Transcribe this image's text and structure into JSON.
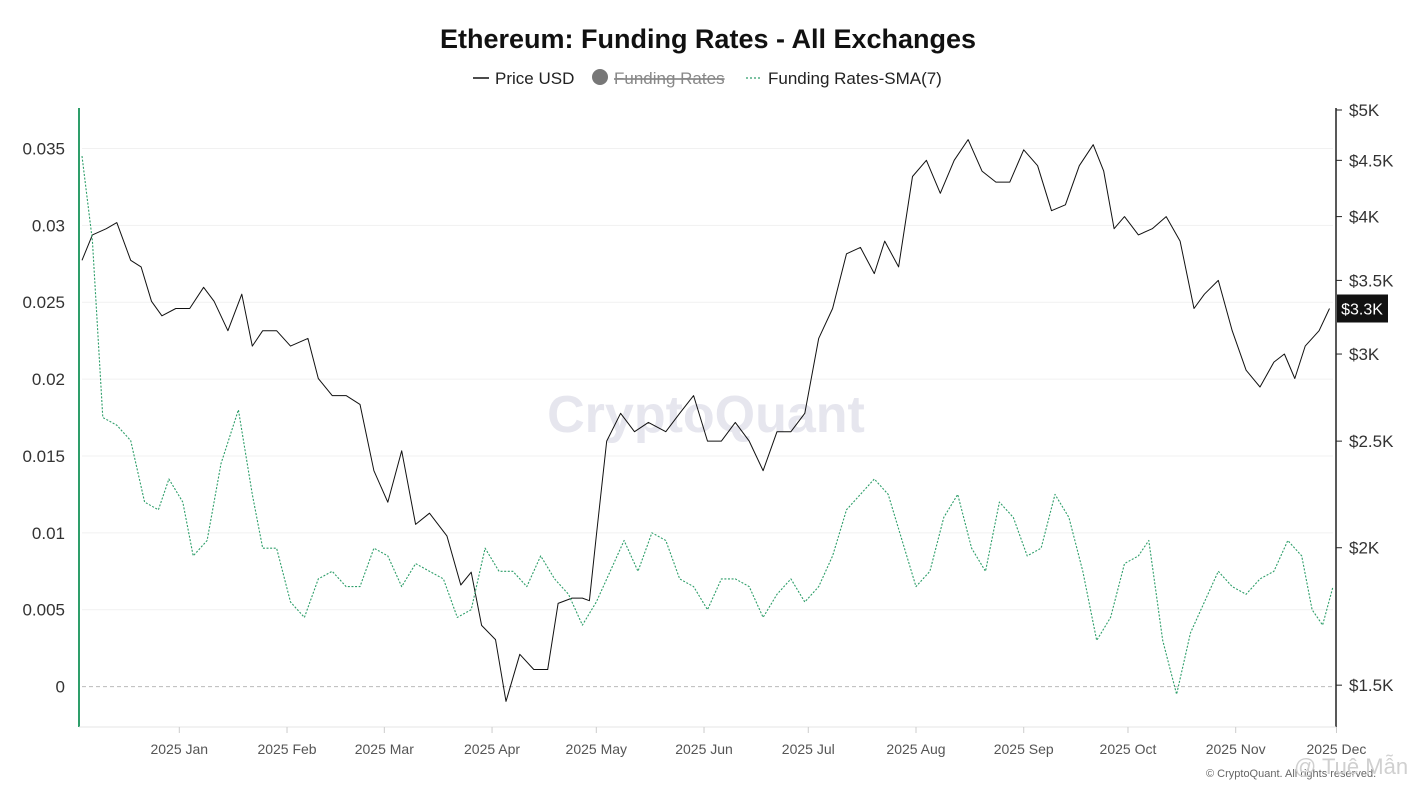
{
  "chart_data": {
    "type": "line",
    "title": "Ethereum: Funding Rates - All Exchanges",
    "legend": [
      {
        "name": "Price USD",
        "style": "solid",
        "color": "#111111",
        "hidden": false
      },
      {
        "name": "Funding Rates",
        "style": "dot",
        "color": "#777777",
        "hidden": true
      },
      {
        "name": "Funding Rates-SMA(7)",
        "style": "dashed",
        "color": "#2e9e6a",
        "hidden": false
      }
    ],
    "left_axis": {
      "ticks": [
        "0",
        "0.005",
        "0.01",
        "0.015",
        "0.02",
        "0.025",
        "0.03",
        "0.035"
      ],
      "ylim": [
        -0.0025,
        0.0375
      ]
    },
    "right_axis": {
      "scale": "log",
      "ticks": [
        "$1.5K",
        "$2K",
        "$2.5K",
        "$3K",
        "$3.5K",
        "$4K",
        "$4.5K",
        "$5K"
      ],
      "tick_values": [
        1500,
        2000,
        2500,
        3000,
        3500,
        4000,
        4500,
        5000
      ],
      "ylim": [
        1380,
        5000
      ]
    },
    "x_ticks": [
      "2025 Jan",
      "2025 Feb",
      "2025 Mar",
      "2025 Apr",
      "2025 May",
      "2025 Jun",
      "2025 Jul",
      "2025 Aug",
      "2025 Sep",
      "2025 Oct",
      "2025 Nov",
      "2025 Dec"
    ],
    "x_range": [
      "2024-12-18",
      "2025-12-13"
    ],
    "current_price_label": "$3.3K",
    "series": [
      {
        "name": "Price USD",
        "axis": "right",
        "points": [
          [
            "2024-12-18",
            3650
          ],
          [
            "2024-12-21",
            3850
          ],
          [
            "2024-12-25",
            3900
          ],
          [
            "2024-12-28",
            3950
          ],
          [
            "2025-01-01",
            3650
          ],
          [
            "2025-01-04",
            3600
          ],
          [
            "2025-01-07",
            3350
          ],
          [
            "2025-01-10",
            3250
          ],
          [
            "2025-01-14",
            3300
          ],
          [
            "2025-01-18",
            3300
          ],
          [
            "2025-01-22",
            3450
          ],
          [
            "2025-01-25",
            3350
          ],
          [
            "2025-01-29",
            3150
          ],
          [
            "2025-02-02",
            3400
          ],
          [
            "2025-02-05",
            3050
          ],
          [
            "2025-02-08",
            3150
          ],
          [
            "2025-02-12",
            3150
          ],
          [
            "2025-02-16",
            3050
          ],
          [
            "2025-02-21",
            3100
          ],
          [
            "2025-02-24",
            2850
          ],
          [
            "2025-02-28",
            2750
          ],
          [
            "2025-03-04",
            2750
          ],
          [
            "2025-03-08",
            2700
          ],
          [
            "2025-03-12",
            2350
          ],
          [
            "2025-03-16",
            2200
          ],
          [
            "2025-03-20",
            2450
          ],
          [
            "2025-03-24",
            2100
          ],
          [
            "2025-03-28",
            2150
          ],
          [
            "2025-04-02",
            2050
          ],
          [
            "2025-04-06",
            1850
          ],
          [
            "2025-04-09",
            1900
          ],
          [
            "2025-04-12",
            1700
          ],
          [
            "2025-04-16",
            1650
          ],
          [
            "2025-04-19",
            1450
          ],
          [
            "2025-04-23",
            1600
          ],
          [
            "2025-04-27",
            1550
          ],
          [
            "2025-05-01",
            1550
          ],
          [
            "2025-05-04",
            1780
          ],
          [
            "2025-05-08",
            1800
          ],
          [
            "2025-05-11",
            1800
          ],
          [
            "2025-05-13",
            1790
          ],
          [
            "2025-05-15",
            2050
          ],
          [
            "2025-05-18",
            2500
          ],
          [
            "2025-05-22",
            2650
          ],
          [
            "2025-05-26",
            2550
          ],
          [
            "2025-05-30",
            2600
          ],
          [
            "2025-06-04",
            2550
          ],
          [
            "2025-06-08",
            2650
          ],
          [
            "2025-06-12",
            2750
          ],
          [
            "2025-06-16",
            2500
          ],
          [
            "2025-06-20",
            2500
          ],
          [
            "2025-06-24",
            2600
          ],
          [
            "2025-06-28",
            2500
          ],
          [
            "2025-07-02",
            2350
          ],
          [
            "2025-07-06",
            2550
          ],
          [
            "2025-07-10",
            2550
          ],
          [
            "2025-07-14",
            2650
          ],
          [
            "2025-07-18",
            3100
          ],
          [
            "2025-07-22",
            3300
          ],
          [
            "2025-07-26",
            3700
          ],
          [
            "2025-07-30",
            3750
          ],
          [
            "2025-08-03",
            3550
          ],
          [
            "2025-08-06",
            3800
          ],
          [
            "2025-08-10",
            3600
          ],
          [
            "2025-08-14",
            4350
          ],
          [
            "2025-08-18",
            4500
          ],
          [
            "2025-08-22",
            4200
          ],
          [
            "2025-08-26",
            4500
          ],
          [
            "2025-08-30",
            4700
          ],
          [
            "2025-09-03",
            4400
          ],
          [
            "2025-09-07",
            4300
          ],
          [
            "2025-09-11",
            4300
          ],
          [
            "2025-09-15",
            4600
          ],
          [
            "2025-09-19",
            4450
          ],
          [
            "2025-09-23",
            4050
          ],
          [
            "2025-09-27",
            4100
          ],
          [
            "2025-10-01",
            4450
          ],
          [
            "2025-10-05",
            4650
          ],
          [
            "2025-10-08",
            4400
          ],
          [
            "2025-10-11",
            3900
          ],
          [
            "2025-10-14",
            4000
          ],
          [
            "2025-10-18",
            3850
          ],
          [
            "2025-10-22",
            3900
          ],
          [
            "2025-10-26",
            4000
          ],
          [
            "2025-10-30",
            3800
          ],
          [
            "2025-11-03",
            3300
          ],
          [
            "2025-11-06",
            3400
          ],
          [
            "2025-11-10",
            3500
          ],
          [
            "2025-11-14",
            3150
          ],
          [
            "2025-11-18",
            2900
          ],
          [
            "2025-11-22",
            2800
          ],
          [
            "2025-11-26",
            2950
          ],
          [
            "2025-11-29",
            3000
          ],
          [
            "2025-12-02",
            2850
          ],
          [
            "2025-12-05",
            3050
          ],
          [
            "2025-12-09",
            3150
          ],
          [
            "2025-12-12",
            3300
          ]
        ]
      },
      {
        "name": "Funding Rates-SMA(7)",
        "axis": "left",
        "points": [
          [
            "2024-12-18",
            0.0345
          ],
          [
            "2024-12-21",
            0.029
          ],
          [
            "2024-12-24",
            0.0175
          ],
          [
            "2024-12-28",
            0.017
          ],
          [
            "2025-01-01",
            0.016
          ],
          [
            "2025-01-05",
            0.012
          ],
          [
            "2025-01-09",
            0.0115
          ],
          [
            "2025-01-12",
            0.0135
          ],
          [
            "2025-01-16",
            0.012
          ],
          [
            "2025-01-19",
            0.0085
          ],
          [
            "2025-01-23",
            0.0095
          ],
          [
            "2025-01-27",
            0.0145
          ],
          [
            "2025-02-01",
            0.018
          ],
          [
            "2025-02-05",
            0.0125
          ],
          [
            "2025-02-08",
            0.009
          ],
          [
            "2025-02-12",
            0.009
          ],
          [
            "2025-02-16",
            0.0055
          ],
          [
            "2025-02-20",
            0.0045
          ],
          [
            "2025-02-24",
            0.007
          ],
          [
            "2025-02-28",
            0.0075
          ],
          [
            "2025-03-04",
            0.0065
          ],
          [
            "2025-03-08",
            0.0065
          ],
          [
            "2025-03-12",
            0.009
          ],
          [
            "2025-03-16",
            0.0085
          ],
          [
            "2025-03-20",
            0.0065
          ],
          [
            "2025-03-24",
            0.008
          ],
          [
            "2025-03-28",
            0.0075
          ],
          [
            "2025-04-01",
            0.007
          ],
          [
            "2025-04-05",
            0.0045
          ],
          [
            "2025-04-09",
            0.005
          ],
          [
            "2025-04-13",
            0.009
          ],
          [
            "2025-04-17",
            0.0075
          ],
          [
            "2025-04-21",
            0.0075
          ],
          [
            "2025-04-25",
            0.0065
          ],
          [
            "2025-04-29",
            0.0085
          ],
          [
            "2025-05-03",
            0.007
          ],
          [
            "2025-05-07",
            0.006
          ],
          [
            "2025-05-11",
            0.004
          ],
          [
            "2025-05-15",
            0.0055
          ],
          [
            "2025-05-19",
            0.0075
          ],
          [
            "2025-05-23",
            0.0095
          ],
          [
            "2025-05-27",
            0.0075
          ],
          [
            "2025-05-31",
            0.01
          ],
          [
            "2025-06-04",
            0.0095
          ],
          [
            "2025-06-08",
            0.007
          ],
          [
            "2025-06-12",
            0.0065
          ],
          [
            "2025-06-16",
            0.005
          ],
          [
            "2025-06-20",
            0.007
          ],
          [
            "2025-06-24",
            0.007
          ],
          [
            "2025-06-28",
            0.0065
          ],
          [
            "2025-07-02",
            0.0045
          ],
          [
            "2025-07-06",
            0.006
          ],
          [
            "2025-07-10",
            0.007
          ],
          [
            "2025-07-14",
            0.0055
          ],
          [
            "2025-07-18",
            0.0065
          ],
          [
            "2025-07-22",
            0.0085
          ],
          [
            "2025-07-26",
            0.0115
          ],
          [
            "2025-07-30",
            0.0125
          ],
          [
            "2025-08-03",
            0.0135
          ],
          [
            "2025-08-07",
            0.0125
          ],
          [
            "2025-08-11",
            0.0095
          ],
          [
            "2025-08-15",
            0.0065
          ],
          [
            "2025-08-19",
            0.0075
          ],
          [
            "2025-08-23",
            0.011
          ],
          [
            "2025-08-27",
            0.0125
          ],
          [
            "2025-08-31",
            0.009
          ],
          [
            "2025-09-04",
            0.0075
          ],
          [
            "2025-09-08",
            0.012
          ],
          [
            "2025-09-12",
            0.011
          ],
          [
            "2025-09-16",
            0.0085
          ],
          [
            "2025-09-20",
            0.009
          ],
          [
            "2025-09-24",
            0.0125
          ],
          [
            "2025-09-28",
            0.011
          ],
          [
            "2025-10-02",
            0.0075
          ],
          [
            "2025-10-06",
            0.003
          ],
          [
            "2025-10-10",
            0.0045
          ],
          [
            "2025-10-14",
            0.008
          ],
          [
            "2025-10-18",
            0.0085
          ],
          [
            "2025-10-21",
            0.0095
          ],
          [
            "2025-10-25",
            0.003
          ],
          [
            "2025-10-29",
            -0.0005
          ],
          [
            "2025-11-02",
            0.0035
          ],
          [
            "2025-11-06",
            0.0055
          ],
          [
            "2025-11-10",
            0.0075
          ],
          [
            "2025-11-14",
            0.0065
          ],
          [
            "2025-11-18",
            0.006
          ],
          [
            "2025-11-22",
            0.007
          ],
          [
            "2025-11-26",
            0.0075
          ],
          [
            "2025-11-30",
            0.0095
          ],
          [
            "2025-12-04",
            0.0085
          ],
          [
            "2025-12-07",
            0.005
          ],
          [
            "2025-12-10",
            0.004
          ],
          [
            "2025-12-13",
            0.0065
          ]
        ]
      }
    ]
  },
  "footer": {
    "watermark": "CryptoQuant",
    "copyright": "© CryptoQuant. All rights reserved.",
    "signature": "@ Tuệ Mẫn"
  }
}
